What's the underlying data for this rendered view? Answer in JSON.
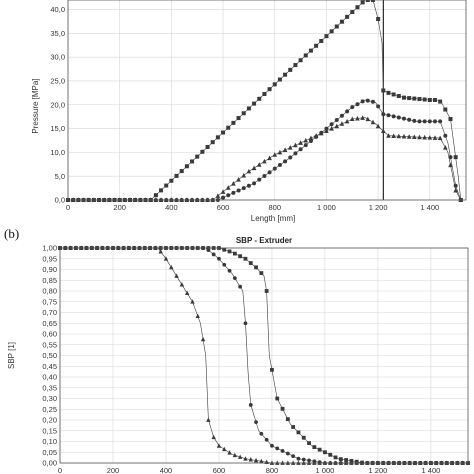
{
  "colors": {
    "series": "#3a3a3a",
    "grid": "#d6d6d6",
    "frame": "#555555",
    "vline": "#000000"
  },
  "chart_data": [
    {
      "type": "scatter",
      "title": "",
      "xlabel": "Length [mm]",
      "ylabel": "Pressure [MPa]",
      "xlim": [
        0,
        1540
      ],
      "ylim": [
        0,
        42
      ],
      "xticks": [
        0,
        200,
        400,
        600,
        800,
        1000,
        1200,
        1400
      ],
      "xtick_labels": [
        "0",
        "200",
        "400",
        "600",
        "800",
        "1 000",
        "1 200",
        "1 400"
      ],
      "yticks": [
        0,
        5,
        10,
        15,
        20,
        25,
        30,
        35,
        40
      ],
      "ytick_labels": [
        "0,0",
        "5,0",
        "10,0",
        "15,0",
        "20,0",
        "25,0",
        "30,0",
        "35,0",
        "40,0"
      ],
      "grid": true,
      "reference_line_x": 1220,
      "series": [
        {
          "marker": "square",
          "x": [
            0,
            320,
            1150,
            1180,
            1200,
            1215,
            1220,
            1240,
            1300,
            1400,
            1430,
            1445,
            1480,
            1510,
            1520
          ],
          "y": [
            0,
            0,
            42,
            42,
            38,
            33,
            23,
            22.5,
            21.5,
            21,
            21,
            20.5,
            17,
            5,
            0
          ]
        },
        {
          "marker": "circle",
          "x": [
            0,
            580,
            720,
            850,
            1000,
            1100,
            1150,
            1190,
            1220,
            1240,
            1350,
            1440,
            1470,
            1500,
            1520
          ],
          "y": [
            0,
            0,
            3.5,
            8.5,
            15,
            19.5,
            21,
            20.5,
            18,
            17.8,
            16.5,
            16.5,
            12,
            3,
            0
          ]
        },
        {
          "marker": "triangle",
          "x": [
            0,
            560,
            700,
            800,
            900,
            1000,
            1100,
            1150,
            1190,
            1220,
            1240,
            1350,
            1440,
            1470,
            1500,
            1520
          ],
          "y": [
            0,
            0,
            6,
            9.5,
            12,
            14.5,
            17,
            17.3,
            16,
            14.5,
            13.5,
            13.2,
            13,
            10,
            2,
            0
          ]
        }
      ]
    },
    {
      "type": "scatter",
      "title": "SBP - Extruder",
      "xlabel": "",
      "ylabel": "SBP [1]",
      "xlim": [
        0,
        1540
      ],
      "ylim": [
        0,
        1
      ],
      "xticks": [
        0,
        200,
        400,
        600,
        800,
        1000,
        1200,
        1400
      ],
      "xtick_labels": [
        "0",
        "200",
        "400",
        "600",
        "800",
        "1 000",
        "1 200",
        "1 400"
      ],
      "yticks": [
        0,
        0.05,
        0.1,
        0.15,
        0.2,
        0.25,
        0.3,
        0.35,
        0.4,
        0.45,
        0.5,
        0.55,
        0.6,
        0.65,
        0.7,
        0.75,
        0.8,
        0.85,
        0.9,
        0.95,
        1
      ],
      "ytick_labels": [
        "0,00",
        "0,05",
        "0,10",
        "0,15",
        "0,20",
        "0,25",
        "0,30",
        "0,35",
        "0,40",
        "0,45",
        "0,50",
        "0,55",
        "0,60",
        "0,65",
        "0,70",
        "0,75",
        "0,80",
        "0,85",
        "0,90",
        "0,95",
        "1,00"
      ],
      "grid": true,
      "series": [
        {
          "marker": "square",
          "x": [
            0,
            600,
            650,
            700,
            740,
            770,
            780,
            790,
            820,
            870,
            950,
            1050,
            1150,
            1300,
            1540
          ],
          "y": [
            1,
            1,
            0.98,
            0.95,
            0.91,
            0.87,
            0.8,
            0.5,
            0.3,
            0.18,
            0.08,
            0.02,
            0,
            0,
            0
          ]
        },
        {
          "marker": "circle",
          "x": [
            0,
            550,
            600,
            650,
            690,
            700,
            710,
            720,
            750,
            800,
            900,
            1000,
            1100,
            1540
          ],
          "y": [
            1,
            1,
            0.95,
            0.88,
            0.8,
            0.65,
            0.42,
            0.27,
            0.15,
            0.08,
            0.02,
            0,
            0,
            0
          ]
        },
        {
          "marker": "triangle",
          "x": [
            0,
            370,
            400,
            450,
            500,
            530,
            550,
            560,
            580,
            600,
            650,
            700,
            800,
            1540
          ],
          "y": [
            1,
            1,
            0.95,
            0.85,
            0.75,
            0.65,
            0.5,
            0.2,
            0.12,
            0.08,
            0.04,
            0.02,
            0,
            0
          ]
        }
      ]
    }
  ],
  "panel_labels": {
    "b": "(b)"
  }
}
